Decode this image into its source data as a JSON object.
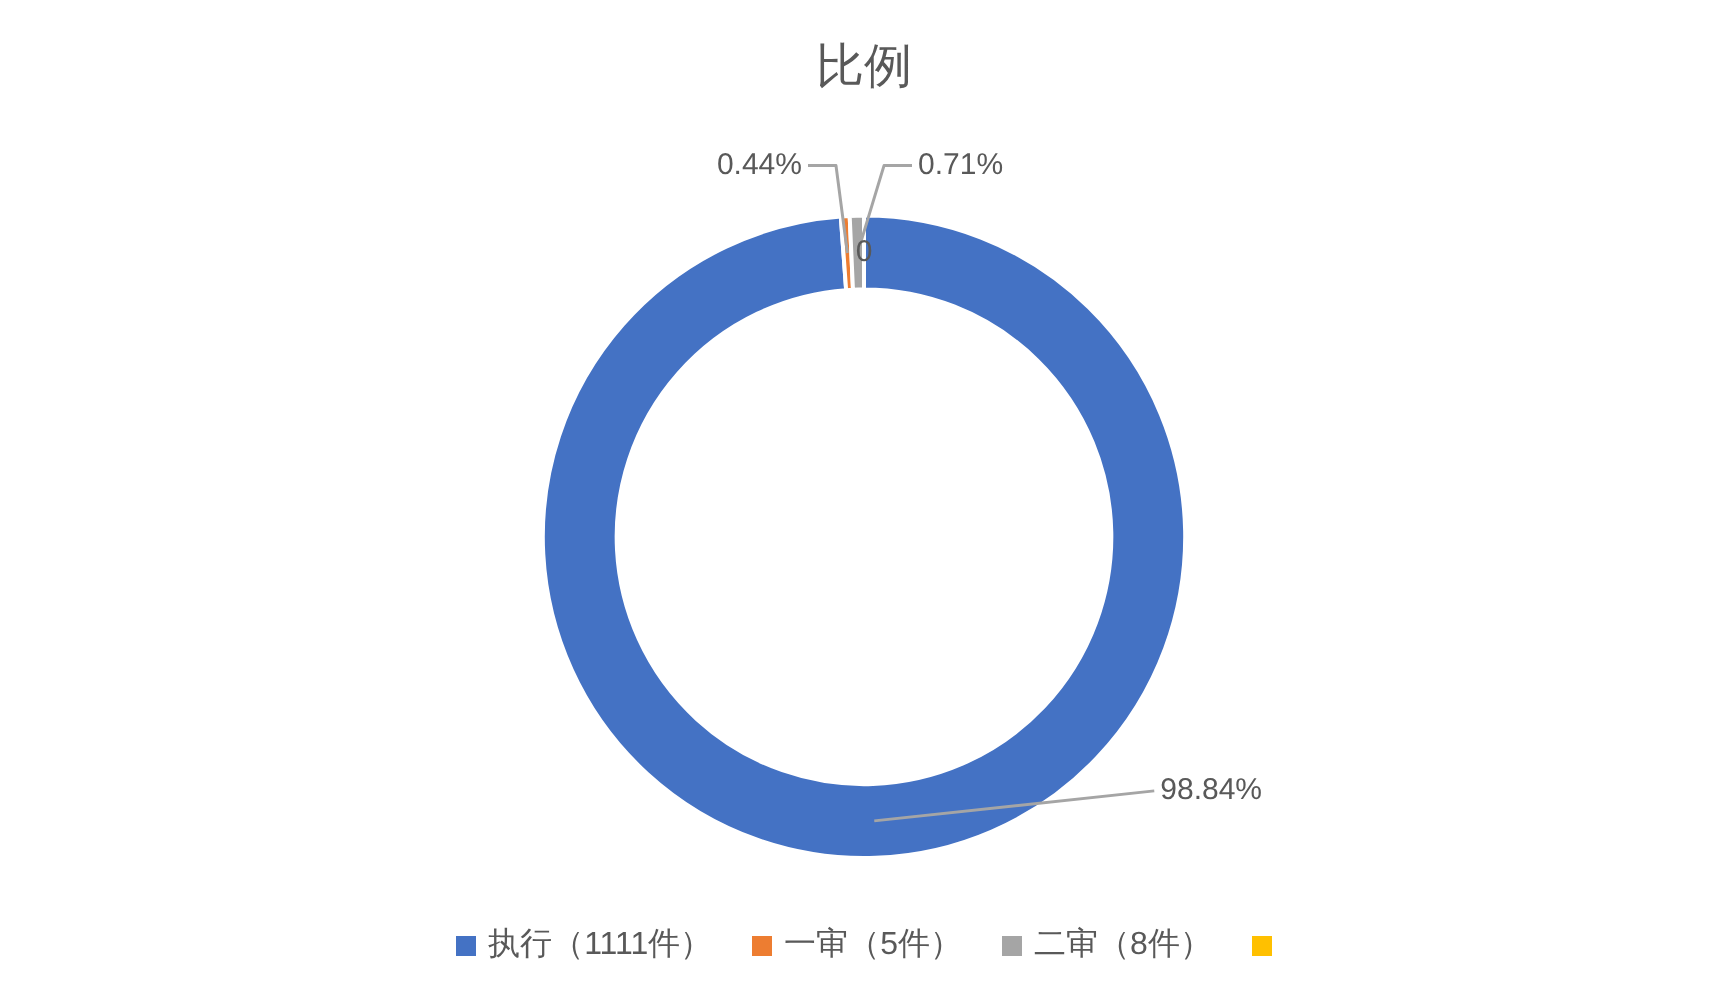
{
  "chart_data": {
    "type": "donut",
    "title": "比例",
    "categories": [
      "执行（1111件）",
      "一审（5件）",
      "二审（8件）",
      null
    ],
    "values": [
      98.84,
      0.44,
      0.71,
      0
    ],
    "colors": [
      "#4472c4",
      "#ed7d31",
      "#a5a5a5",
      "#ffc000"
    ],
    "value_labels": [
      "98.84%",
      "0.44%",
      "0.71%",
      "0"
    ],
    "legend": "bottom"
  }
}
